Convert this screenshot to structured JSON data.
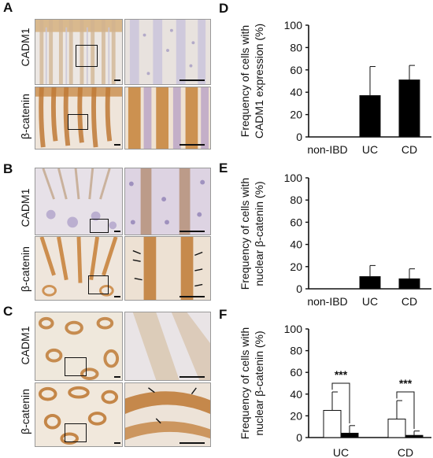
{
  "figure": {
    "panels": [
      {
        "letter": "A",
        "rows": [
          "CADM1",
          "β-catenin"
        ]
      },
      {
        "letter": "B",
        "rows": [
          "CADM1",
          "β-catenin"
        ]
      },
      {
        "letter": "C",
        "rows": [
          "CADM1",
          "β-catenin"
        ]
      }
    ],
    "colors": {
      "stain_brown": "#b86e2a",
      "hematoxylin": "#8f84b5",
      "background": "#efe9e2"
    }
  },
  "chart_data": [
    {
      "panel": "D",
      "type": "bar",
      "ylabel": [
        "Frequency of cells with",
        "CADM1 expression (%)"
      ],
      "ylim": [
        0,
        100
      ],
      "yticks": [
        0,
        20,
        40,
        60,
        80,
        100
      ],
      "categories": [
        "non-IBD",
        "UC",
        "CD"
      ],
      "series": [
        {
          "values": [
            0,
            37,
            51
          ],
          "errors": [
            0,
            26,
            13
          ],
          "color": "#000000"
        }
      ]
    },
    {
      "panel": "E",
      "type": "bar",
      "ylabel": [
        "Frequency of cells with",
        "nuclear β-catenin (%)"
      ],
      "ylim": [
        0,
        100
      ],
      "yticks": [
        0,
        20,
        40,
        60,
        80,
        100
      ],
      "categories": [
        "non-IBD",
        "UC",
        "CD"
      ],
      "series": [
        {
          "values": [
            0,
            11,
            9
          ],
          "errors": [
            0,
            10,
            9
          ],
          "color": "#000000"
        }
      ]
    },
    {
      "panel": "F",
      "type": "bar",
      "ylabel": [
        "Frequency of cells with",
        "nuclear β-catenin (%)"
      ],
      "ylim": [
        0,
        100
      ],
      "yticks": [
        0,
        20,
        40,
        60,
        80,
        100
      ],
      "categories": [
        "UC",
        "CD"
      ],
      "series": [
        {
          "values": [
            25,
            17
          ],
          "errors": [
            17,
            17
          ],
          "color": "#ffffff"
        },
        {
          "values": [
            4,
            2
          ],
          "errors": [
            7,
            4
          ],
          "color": "#000000"
        }
      ],
      "annotations": [
        "***",
        "***"
      ]
    }
  ]
}
